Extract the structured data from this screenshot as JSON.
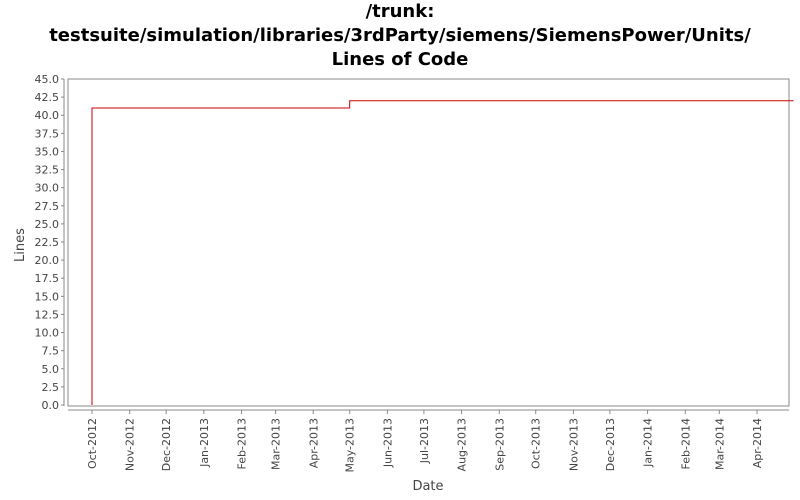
{
  "chart_data": {
    "type": "line",
    "title_lines": [
      "/trunk:",
      "testsuite/simulation/libraries/3rdParty/siemens/SiemensPower/Units/",
      "Lines of Code"
    ],
    "xlabel": "Date",
    "ylabel": "Lines",
    "ylim": [
      0,
      45
    ],
    "y_ticks": [
      "0.0",
      "2.5",
      "5.0",
      "7.5",
      "10.0",
      "12.5",
      "15.0",
      "17.5",
      "20.0",
      "22.5",
      "25.0",
      "27.5",
      "30.0",
      "32.5",
      "35.0",
      "37.5",
      "40.0",
      "42.5",
      "45.0"
    ],
    "x_ticks": [
      "Oct-2012",
      "Nov-2012",
      "Dec-2012",
      "Jan-2013",
      "Feb-2013",
      "Mar-2013",
      "Apr-2013",
      "May-2013",
      "Jun-2013",
      "Jul-2013",
      "Aug-2013",
      "Sep-2013",
      "Oct-2013",
      "Nov-2013",
      "Dec-2013",
      "Jan-2014",
      "Feb-2014",
      "Mar-2014",
      "Apr-2014"
    ],
    "series": [
      {
        "color": "#cc0000",
        "points": [
          {
            "x": "2012-10-01",
            "y": 0
          },
          {
            "x": "2012-10-01",
            "y": 41
          },
          {
            "x": "2013-05-01",
            "y": 41
          },
          {
            "x": "2013-05-01",
            "y": 42
          },
          {
            "x": "2014-05-01",
            "y": 42
          }
        ]
      }
    ],
    "grid": false
  }
}
